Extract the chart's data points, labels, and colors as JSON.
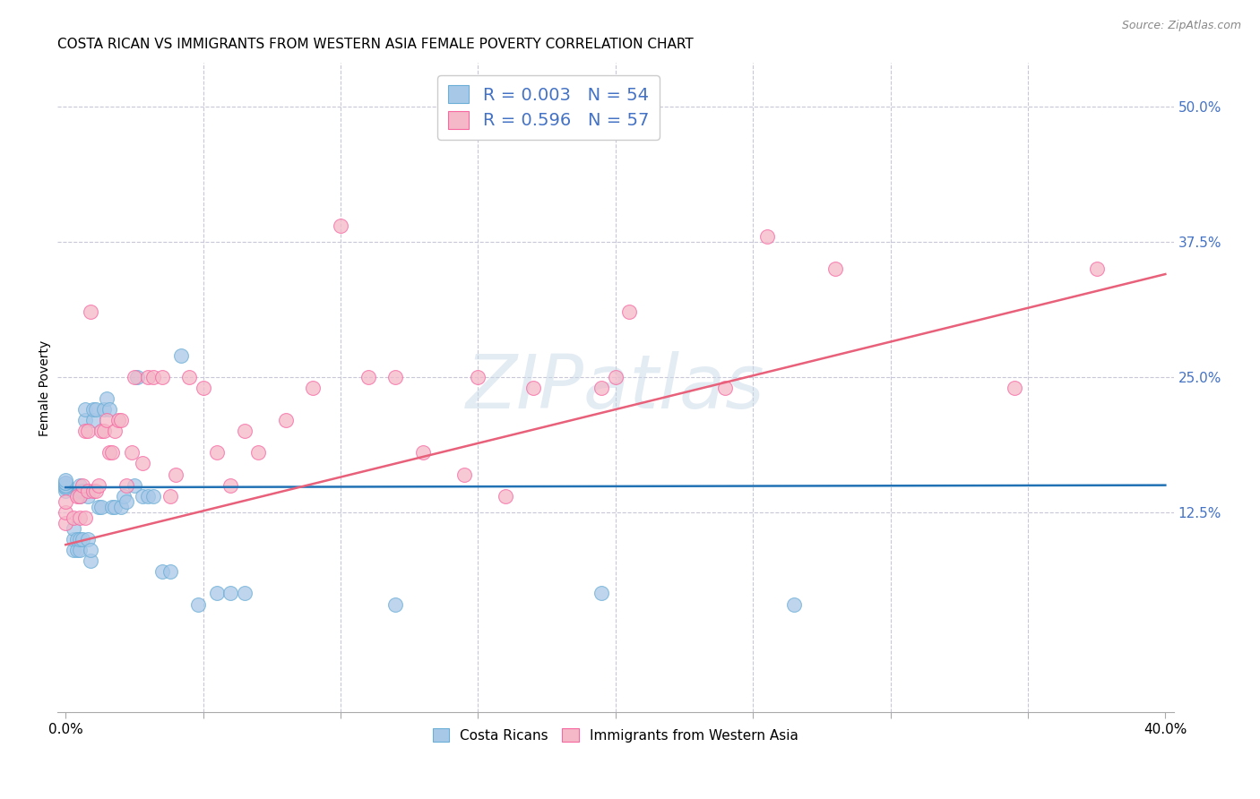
{
  "title": "COSTA RICAN VS IMMIGRANTS FROM WESTERN ASIA FEMALE POVERTY CORRELATION CHART",
  "source": "Source: ZipAtlas.com",
  "xlabel": "",
  "ylabel": "Female Poverty",
  "watermark": "ZIPatlas",
  "xlim": [
    -0.003,
    0.403
  ],
  "ylim": [
    -0.06,
    0.54
  ],
  "yticks_right": [
    0.125,
    0.25,
    0.375,
    0.5
  ],
  "ytick_right_labels": [
    "12.5%",
    "25.0%",
    "37.5%",
    "50.0%"
  ],
  "blue_R": 0.003,
  "blue_N": 54,
  "pink_R": 0.596,
  "pink_N": 57,
  "blue_color": "#a8c8e8",
  "pink_color": "#f4b8c8",
  "blue_edge_color": "#6baed6",
  "pink_edge_color": "#f768a1",
  "blue_line_color": "#2171b5",
  "pink_line_color": "#e8607a",
  "title_fontsize": 11,
  "axis_label_fontsize": 10,
  "tick_fontsize": 11,
  "legend_fontsize": 14,
  "blue_scatter": {
    "x": [
      0.0,
      0.0,
      0.0,
      0.0,
      0.0,
      0.0,
      0.0,
      0.0,
      0.003,
      0.003,
      0.003,
      0.004,
      0.004,
      0.005,
      0.005,
      0.005,
      0.005,
      0.005,
      0.006,
      0.006,
      0.007,
      0.007,
      0.008,
      0.008,
      0.009,
      0.009,
      0.01,
      0.01,
      0.011,
      0.012,
      0.013,
      0.014,
      0.015,
      0.016,
      0.017,
      0.018,
      0.02,
      0.021,
      0.022,
      0.025,
      0.026,
      0.028,
      0.03,
      0.032,
      0.035,
      0.038,
      0.042,
      0.048,
      0.055,
      0.06,
      0.065,
      0.12,
      0.195,
      0.265
    ],
    "y": [
      0.145,
      0.148,
      0.148,
      0.15,
      0.15,
      0.152,
      0.152,
      0.155,
      0.09,
      0.1,
      0.11,
      0.09,
      0.1,
      0.09,
      0.1,
      0.14,
      0.145,
      0.15,
      0.1,
      0.145,
      0.21,
      0.22,
      0.1,
      0.14,
      0.08,
      0.09,
      0.21,
      0.22,
      0.22,
      0.13,
      0.13,
      0.22,
      0.23,
      0.22,
      0.13,
      0.13,
      0.13,
      0.14,
      0.135,
      0.15,
      0.25,
      0.14,
      0.14,
      0.14,
      0.07,
      0.07,
      0.27,
      0.04,
      0.05,
      0.05,
      0.05,
      0.04,
      0.05,
      0.04
    ]
  },
  "pink_scatter": {
    "x": [
      0.0,
      0.0,
      0.0,
      0.003,
      0.004,
      0.005,
      0.005,
      0.006,
      0.007,
      0.007,
      0.008,
      0.008,
      0.009,
      0.01,
      0.011,
      0.012,
      0.013,
      0.014,
      0.015,
      0.016,
      0.017,
      0.018,
      0.019,
      0.02,
      0.022,
      0.024,
      0.025,
      0.028,
      0.03,
      0.032,
      0.035,
      0.038,
      0.04,
      0.045,
      0.05,
      0.055,
      0.06,
      0.065,
      0.07,
      0.08,
      0.09,
      0.1,
      0.11,
      0.12,
      0.13,
      0.145,
      0.15,
      0.16,
      0.17,
      0.195,
      0.2,
      0.205,
      0.24,
      0.255,
      0.28,
      0.345,
      0.375
    ],
    "y": [
      0.115,
      0.125,
      0.135,
      0.12,
      0.14,
      0.12,
      0.14,
      0.15,
      0.12,
      0.2,
      0.145,
      0.2,
      0.31,
      0.145,
      0.145,
      0.15,
      0.2,
      0.2,
      0.21,
      0.18,
      0.18,
      0.2,
      0.21,
      0.21,
      0.15,
      0.18,
      0.25,
      0.17,
      0.25,
      0.25,
      0.25,
      0.14,
      0.16,
      0.25,
      0.24,
      0.18,
      0.15,
      0.2,
      0.18,
      0.21,
      0.24,
      0.39,
      0.25,
      0.25,
      0.18,
      0.16,
      0.25,
      0.14,
      0.24,
      0.24,
      0.25,
      0.31,
      0.24,
      0.38,
      0.35,
      0.24,
      0.35
    ]
  },
  "blue_line": {
    "x0": 0.0,
    "x1": 0.4,
    "y0": 0.148,
    "y1": 0.15
  },
  "pink_line": {
    "x0": 0.0,
    "x1": 0.4,
    "y0": 0.095,
    "y1": 0.345
  },
  "grid_color": "#c8c8d8",
  "background_color": "#ffffff",
  "xgrid_positions": [
    0.05,
    0.1,
    0.15,
    0.2,
    0.25,
    0.3,
    0.35
  ]
}
